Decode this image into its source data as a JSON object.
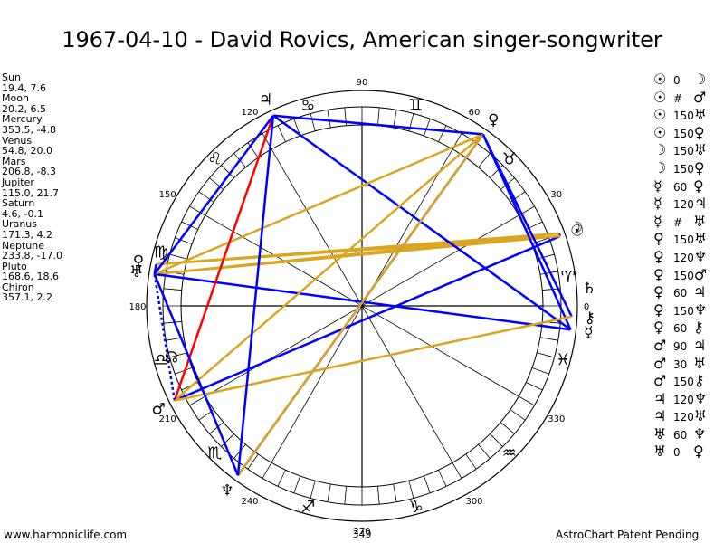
{
  "title": "1967-04-10 - David Rovics, American singer-songwriter",
  "planets": [
    {
      "name": "Sun",
      "lon": 19.4,
      "lat": 7.6,
      "coords": "19.4, 7.6",
      "glyph": "☉"
    },
    {
      "name": "Moon",
      "lon": 20.2,
      "lat": 6.5,
      "coords": "20.2, 6.5",
      "glyph": "☽"
    },
    {
      "name": "Mercury",
      "lon": 353.5,
      "lat": -4.8,
      "coords": "353.5, -4.8",
      "glyph": "☿"
    },
    {
      "name": "Venus",
      "lon": 54.8,
      "lat": 20.0,
      "coords": "54.8, 20.0",
      "glyph": "♀"
    },
    {
      "name": "Mars",
      "lon": 206.8,
      "lat": -8.3,
      "coords": "206.8, -8.3",
      "glyph": "♂"
    },
    {
      "name": "Jupiter",
      "lon": 115.0,
      "lat": 21.7,
      "coords": "115.0, 21.7",
      "glyph": "♃"
    },
    {
      "name": "Saturn",
      "lon": 4.6,
      "lat": -0.1,
      "coords": "4.6, -0.1",
      "glyph": "♄"
    },
    {
      "name": "Uranus",
      "lon": 171.3,
      "lat": 4.2,
      "coords": "171.3, 4.2",
      "glyph": "♅"
    },
    {
      "name": "Neptune",
      "lon": 233.8,
      "lat": -17.0,
      "coords": "233.8, -17.0",
      "glyph": "♆"
    },
    {
      "name": "Pluto",
      "lon": 168.6,
      "lat": 18.6,
      "coords": "168.6, 18.6",
      "glyph": "♀"
    },
    {
      "name": "Chiron",
      "lon": 357.1,
      "lat": 2.2,
      "coords": "357.1, 2.2",
      "glyph": "⚷"
    }
  ],
  "zodiac": [
    {
      "sign": "Aries",
      "glyph": "♈"
    },
    {
      "sign": "Taurus",
      "glyph": "♉"
    },
    {
      "sign": "Gemini",
      "glyph": "♊"
    },
    {
      "sign": "Cancer",
      "glyph": "♋"
    },
    {
      "sign": "Leo",
      "glyph": "♌"
    },
    {
      "sign": "Virgo",
      "glyph": "♍"
    },
    {
      "sign": "Libra",
      "glyph": "♎"
    },
    {
      "sign": "Scorpio",
      "glyph": "♏"
    },
    {
      "sign": "Sagittarius",
      "glyph": "♐"
    },
    {
      "sign": "Capricorn",
      "glyph": "♑"
    },
    {
      "sign": "Aquarius",
      "glyph": "♒"
    },
    {
      "sign": "Pisces",
      "glyph": "♓"
    }
  ],
  "node_glyph": "☊",
  "degree_labels": [
    {
      "deg": 0,
      "text": "0"
    },
    {
      "deg": 30,
      "text": "30"
    },
    {
      "deg": 60,
      "text": "60"
    },
    {
      "deg": 90,
      "text": "90"
    },
    {
      "deg": 120,
      "text": "120"
    },
    {
      "deg": 150,
      "text": "150"
    },
    {
      "deg": 180,
      "text": "180"
    },
    {
      "deg": 210,
      "text": "210"
    },
    {
      "deg": 240,
      "text": "240"
    },
    {
      "deg": 270,
      "text": "270"
    },
    {
      "deg": 300,
      "text": "300"
    },
    {
      "deg": 330,
      "text": "330"
    }
  ],
  "ascendant_label": "349",
  "aspects": [
    {
      "p1": "Sun",
      "p2": "Moon",
      "g1": "☉",
      "g2": "☽",
      "type": "0",
      "color": "#0000ff"
    },
    {
      "p1": "Sun",
      "p2": "Mars",
      "g1": "☉",
      "g2": "♂",
      "type": "#",
      "color": "#0000ff"
    },
    {
      "p1": "Sun",
      "p2": "Uranus",
      "g1": "☉",
      "g2": "♅",
      "type": "150",
      "color": "#daa520"
    },
    {
      "p1": "Sun",
      "p2": "Pluto",
      "g1": "☉",
      "g2": "♀",
      "type": "150",
      "color": "#daa520"
    },
    {
      "p1": "Moon",
      "p2": "Uranus",
      "g1": "☽",
      "g2": "♅",
      "type": "150",
      "color": "#daa520"
    },
    {
      "p1": "Moon",
      "p2": "Pluto",
      "g1": "☽",
      "g2": "♀",
      "type": "150",
      "color": "#daa520"
    },
    {
      "p1": "Mercury",
      "p2": "Venus",
      "g1": "☿",
      "g2": "♀",
      "type": "60",
      "color": "#0000ff"
    },
    {
      "p1": "Mercury",
      "p2": "Jupiter",
      "g1": "☿",
      "g2": "♃",
      "type": "120",
      "color": "#0000ff"
    },
    {
      "p1": "Mercury",
      "p2": "Uranus",
      "g1": "☿",
      "g2": "♅",
      "type": "#",
      "color": "#0000ff"
    },
    {
      "p1": "Venus",
      "p2": "Uranus",
      "g1": "♀",
      "g2": "♅",
      "type": "150",
      "color": "#daa520"
    },
    {
      "p1": "Venus",
      "p2": "Neptune",
      "g1": "♀",
      "g2": "♆",
      "type": "120",
      "color": "#0000ff"
    },
    {
      "p1": "Venus",
      "p2": "Mars",
      "g1": "♀",
      "g2": "♂",
      "type": "150",
      "color": "#daa520"
    },
    {
      "p1": "Venus",
      "p2": "Jupiter",
      "g1": "♀",
      "g2": "♃",
      "type": "60",
      "color": "#0000ff"
    },
    {
      "p1": "Venus",
      "p2": "Neptune",
      "g1": "♀",
      "g2": "♆",
      "type": "150",
      "color": "#daa520"
    },
    {
      "p1": "Venus",
      "p2": "Chiron",
      "g1": "♀",
      "g2": "⚷",
      "type": "60",
      "color": "#0000ff"
    },
    {
      "p1": "Mars",
      "p2": "Jupiter",
      "g1": "♂",
      "g2": "♃",
      "type": "90",
      "color": "#ff0000"
    },
    {
      "p1": "Mars",
      "p2": "Uranus",
      "g1": "♂",
      "g2": "♅",
      "type": "30",
      "color": "#0000ff"
    },
    {
      "p1": "Mars",
      "p2": "Chiron",
      "g1": "♂",
      "g2": "⚷",
      "type": "150",
      "color": "#daa520"
    },
    {
      "p1": "Jupiter",
      "p2": "Neptune",
      "g1": "♃",
      "g2": "♆",
      "type": "120",
      "color": "#0000ff"
    },
    {
      "p1": "Jupiter",
      "p2": "Uranus",
      "g1": "♃",
      "g2": "♅",
      "type": "120",
      "color": "#0000ff"
    },
    {
      "p1": "Uranus",
      "p2": "Neptune",
      "g1": "♅",
      "g2": "♆",
      "type": "60",
      "color": "#0000ff"
    },
    {
      "p1": "Uranus",
      "p2": "Pluto",
      "g1": "♅",
      "g2": "♀",
      "type": "0",
      "color": "#0000ff"
    }
  ],
  "footer": {
    "left": "www.harmoniclife.com",
    "right": "AstroChart Patent Pending"
  }
}
